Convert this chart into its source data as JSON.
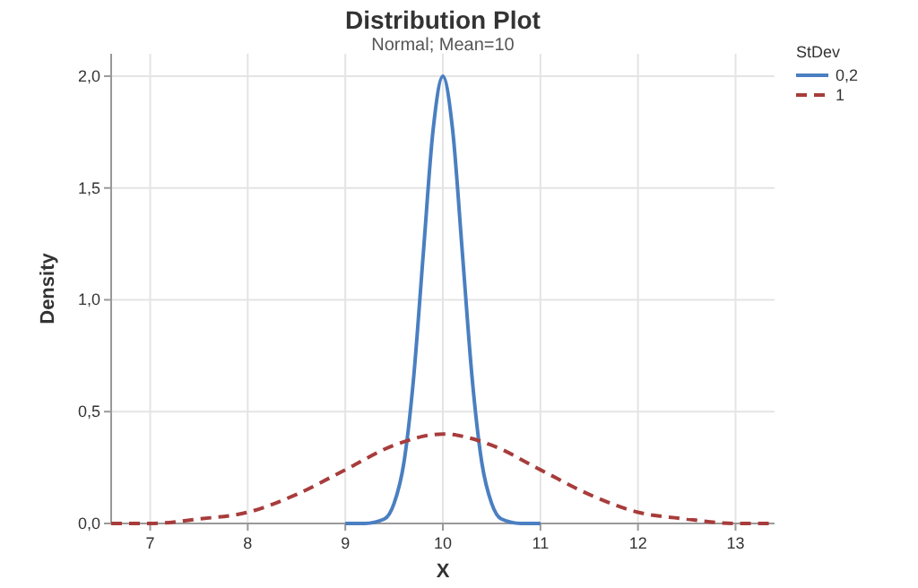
{
  "chart_data": {
    "type": "line",
    "title": "Distribution Plot",
    "subtitle": "Normal; Mean=10",
    "xlabel": "X",
    "ylabel": "Density",
    "legend_title": "StDev",
    "legend": "top right",
    "grid": true,
    "xlim": [
      6.6,
      13.4
    ],
    "xticks": [
      7,
      8,
      9,
      10,
      11,
      12,
      13
    ],
    "ylim": [
      0,
      2.1
    ],
    "yticks": [
      {
        "value": 0,
        "label": "0,0"
      },
      {
        "value": 0.5,
        "label": "0,5"
      },
      {
        "value": 1,
        "label": "1,0"
      },
      {
        "value": 1.5,
        "label": "1,5"
      },
      {
        "value": 2,
        "label": "2,0"
      }
    ],
    "series": [
      {
        "name": "0,2",
        "color": "#4a7fc1",
        "line_style": "solid",
        "x": [
          9,
          9.2,
          9.4,
          9.5,
          9.6,
          9.7,
          9.8,
          9.9,
          10,
          10.1,
          10.2,
          10.3,
          10.4,
          10.5,
          10.6,
          10.8,
          11
        ],
        "values": [
          0,
          0,
          0.02,
          0.09,
          0.27,
          0.65,
          1.21,
          1.76,
          2.0,
          1.76,
          1.21,
          0.65,
          0.27,
          0.09,
          0.02,
          0,
          0
        ]
      },
      {
        "name": "1",
        "color": "#a83c3c",
        "line_style": "dashed",
        "x": [
          6.6,
          7,
          7.5,
          8,
          8.5,
          9,
          9.5,
          10,
          10.5,
          11,
          11.5,
          12,
          12.5,
          13,
          13.4
        ],
        "values": [
          0,
          0,
          0.02,
          0.05,
          0.13,
          0.24,
          0.35,
          0.4,
          0.35,
          0.24,
          0.13,
          0.05,
          0.02,
          0,
          0
        ]
      }
    ]
  }
}
